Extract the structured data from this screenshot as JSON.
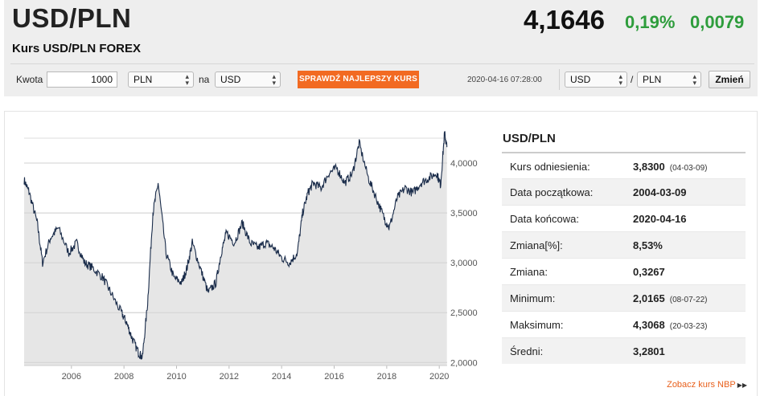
{
  "header": {
    "pair": "USD/PLN",
    "subtitle": "Kurs USD/PLN FOREX",
    "rate": "4,1646",
    "change_pct": "0,19%",
    "change_abs": "0,0079",
    "colors": {
      "positive": "#2e9d3c",
      "accent": "#f26a22"
    }
  },
  "toolbar": {
    "amount_label": "Kwota",
    "amount_value": "1000",
    "from_currency": "PLN",
    "to_label": "na",
    "to_currency": "USD",
    "best_rate_button": "SPRAWDŹ NAJLEPSZY KURS",
    "timestamp": "2020-04-16 07:28:00",
    "pair_base": "USD",
    "pair_separator": "/",
    "pair_quote": "PLN",
    "change_button": "Zmień"
  },
  "stats": {
    "title": "USD/PLN",
    "rows": [
      {
        "label": "Kurs odniesienia:",
        "value": "3,8300",
        "date": "(04-03-09)"
      },
      {
        "label": "Data początkowa:",
        "value": "2004-03-09",
        "date": ""
      },
      {
        "label": "Data końcowa:",
        "value": "2020-04-16",
        "date": ""
      },
      {
        "label": "Zmiana[%]:",
        "value": "8,53%",
        "date": ""
      },
      {
        "label": "Zmiana:",
        "value": "0,3267",
        "date": ""
      },
      {
        "label": "Minimum:",
        "value": "2,0165",
        "date": "(08-07-22)"
      },
      {
        "label": "Maksimum:",
        "value": "4,3068",
        "date": "(20-03-23)"
      },
      {
        "label": "Średni:",
        "value": "3,2801",
        "date": ""
      }
    ],
    "nbp_link": "Zobacz kurs NBP"
  },
  "chart_data": {
    "type": "line",
    "series": [
      {
        "x": [
          2004.2,
          2004.4,
          2004.7,
          2004.9,
          2005.2,
          2005.5,
          2005.9,
          2006.2,
          2006.5,
          2006.8,
          2007.2,
          2007.5,
          2007.9,
          2008.1,
          2008.3,
          2008.55,
          2008.7,
          2008.9,
          2009.1,
          2009.3,
          2009.6,
          2009.9,
          2010.2,
          2010.4,
          2010.6,
          2010.9,
          2011.2,
          2011.5,
          2011.7,
          2011.9,
          2012.2,
          2012.5,
          2012.8,
          2013.1,
          2013.4,
          2013.7,
          2014.0,
          2014.3,
          2014.6,
          2014.8,
          2015.0,
          2015.2,
          2015.5,
          2015.8,
          2016.1,
          2016.4,
          2016.7,
          2016.95,
          2017.3,
          2017.6,
          2017.9,
          2018.1,
          2018.4,
          2018.7,
          2019.0,
          2019.3,
          2019.6,
          2019.9,
          2020.05,
          2020.2,
          2020.29
        ],
        "values": [
          3.83,
          3.7,
          3.4,
          3.0,
          3.25,
          3.35,
          3.1,
          3.2,
          3.0,
          2.95,
          2.85,
          2.7,
          2.5,
          2.4,
          2.25,
          2.1,
          2.05,
          2.6,
          3.5,
          3.8,
          3.1,
          2.85,
          2.8,
          2.95,
          3.2,
          2.95,
          2.7,
          2.8,
          3.1,
          3.3,
          3.2,
          3.4,
          3.2,
          3.15,
          3.2,
          3.15,
          3.05,
          3.0,
          3.1,
          3.5,
          3.7,
          3.8,
          3.75,
          3.9,
          3.95,
          3.8,
          3.9,
          4.2,
          3.85,
          3.65,
          3.45,
          3.35,
          3.65,
          3.75,
          3.7,
          3.8,
          3.85,
          3.9,
          3.78,
          4.3,
          4.16
        ]
      }
    ],
    "xlim": [
      2004.2,
      2020.3
    ],
    "ylim": [
      1.97,
      4.25
    ],
    "x_ticks": [
      "2006",
      "2008",
      "2010",
      "2012",
      "2014",
      "2016",
      "2018",
      "2020"
    ],
    "y_ticks": [
      "2,0000",
      "2,5000",
      "3,0000",
      "3,5000",
      "4,0000"
    ],
    "y_tick_values": [
      2.0,
      2.5,
      3.0,
      3.5,
      4.0
    ],
    "grid": true,
    "line_color": "#1a2c4a",
    "fill_color": "#e6e6e6"
  }
}
